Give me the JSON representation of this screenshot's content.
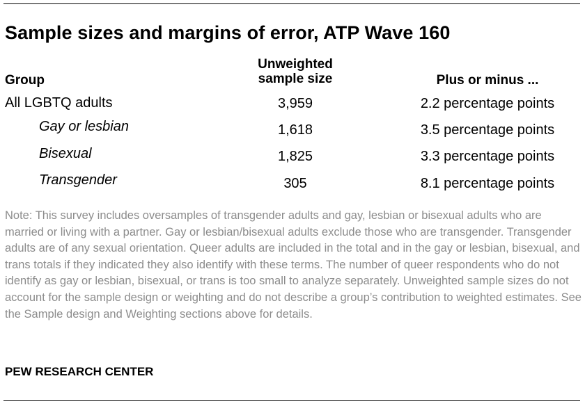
{
  "title": "Sample sizes and margins of error, ATP Wave 160",
  "headers": {
    "group": "Group",
    "sample_size": "Unweighted sample size",
    "margin": "Plus or minus ..."
  },
  "rows": [
    {
      "group": "All LGBTQ adults",
      "size": "3,959",
      "margin": "2.2 percentage points"
    },
    {
      "group": "Gay or lesbian",
      "size": "1,618",
      "margin": "3.5 percentage points"
    },
    {
      "group": "Bisexual",
      "size": "1,825",
      "margin": "3.3 percentage points"
    },
    {
      "group": "Transgender",
      "size": "305",
      "margin": "8.1 percentage points"
    }
  ],
  "note": "Note: This survey includes oversamples of transgender adults and gay, lesbian or bisexual adults who are married or living with a partner. Gay or lesbian/bisexual adults exclude those who are transgender. Transgender adults are of any sexual orientation. Queer adults are included in the total and in the gay or lesbian, bisexual, and trans totals if they indicated they also identify with these terms. The number of queer respondents who do not identify as gay or lesbian, bisexual, or trans is too small to analyze separately. Unweighted sample sizes do not account for the sample design or weighting and do not describe a group’s contribution to weighted estimates. See the Sample design and Weighting sections above for details.",
  "source": "PEW RESEARCH CENTER"
}
